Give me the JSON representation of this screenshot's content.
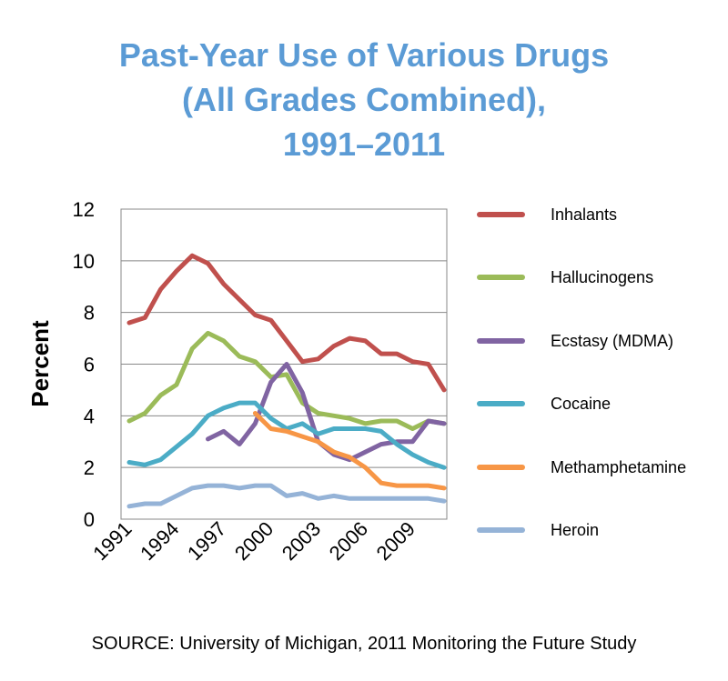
{
  "title_lines": [
    "Past-Year Use of Various Drugs",
    "(All Grades Combined),",
    "1991–2011"
  ],
  "source": "SOURCE: University of Michigan, 2011 Monitoring the Future Study",
  "chart_data": {
    "type": "line",
    "ylabel": "Percent",
    "xlabel": "",
    "ylim": [
      0,
      12
    ],
    "yticks": [
      0,
      2,
      4,
      6,
      8,
      10,
      12
    ],
    "xlim": [
      1991,
      2011
    ],
    "xtick_labels": [
      "1991",
      "1994",
      "1997",
      "2000",
      "2003",
      "2006",
      "2009"
    ],
    "grid": "horizontal",
    "legend_position": "right",
    "x": [
      1991,
      1992,
      1993,
      1994,
      1995,
      1996,
      1997,
      1998,
      1999,
      2000,
      2001,
      2002,
      2003,
      2004,
      2005,
      2006,
      2007,
      2008,
      2009,
      2010,
      2011
    ],
    "series": [
      {
        "name": "Inhalants",
        "color": "#c0504d",
        "values": [
          7.6,
          7.8,
          8.9,
          9.6,
          10.2,
          9.9,
          9.1,
          8.5,
          7.9,
          7.7,
          6.9,
          6.1,
          6.2,
          6.7,
          7.0,
          6.9,
          6.4,
          6.4,
          6.1,
          6.0,
          5.0
        ]
      },
      {
        "name": "Hallucinogens",
        "color": "#9bbb59",
        "values": [
          3.8,
          4.1,
          4.8,
          5.2,
          6.6,
          7.2,
          6.9,
          6.3,
          6.1,
          5.5,
          5.6,
          4.5,
          4.1,
          4.0,
          3.9,
          3.7,
          3.8,
          3.8,
          3.5,
          3.8,
          3.7
        ]
      },
      {
        "name": "Ecstasy (MDMA)",
        "color": "#8064a2",
        "values": [
          null,
          null,
          null,
          null,
          null,
          3.1,
          3.4,
          2.9,
          3.7,
          5.3,
          6.0,
          4.9,
          3.0,
          2.5,
          2.3,
          2.6,
          2.9,
          3.0,
          3.0,
          3.8,
          3.7
        ]
      },
      {
        "name": "Cocaine",
        "color": "#4bacc6",
        "values": [
          2.2,
          2.1,
          2.3,
          2.8,
          3.3,
          4.0,
          4.3,
          4.5,
          4.5,
          3.9,
          3.5,
          3.7,
          3.3,
          3.5,
          3.5,
          3.5,
          3.4,
          2.9,
          2.5,
          2.2,
          2.0
        ]
      },
      {
        "name": "Methamphetamine",
        "color": "#f79646",
        "values": [
          null,
          null,
          null,
          null,
          null,
          null,
          null,
          null,
          4.1,
          3.5,
          3.4,
          3.2,
          3.0,
          2.6,
          2.4,
          2.0,
          1.4,
          1.3,
          1.3,
          1.3,
          1.2
        ]
      },
      {
        "name": "Heroin",
        "color": "#95b3d7",
        "values": [
          0.5,
          0.6,
          0.6,
          0.9,
          1.2,
          1.3,
          1.3,
          1.2,
          1.3,
          1.3,
          0.9,
          1.0,
          0.8,
          0.9,
          0.8,
          0.8,
          0.8,
          0.8,
          0.8,
          0.8,
          0.7
        ]
      }
    ]
  }
}
